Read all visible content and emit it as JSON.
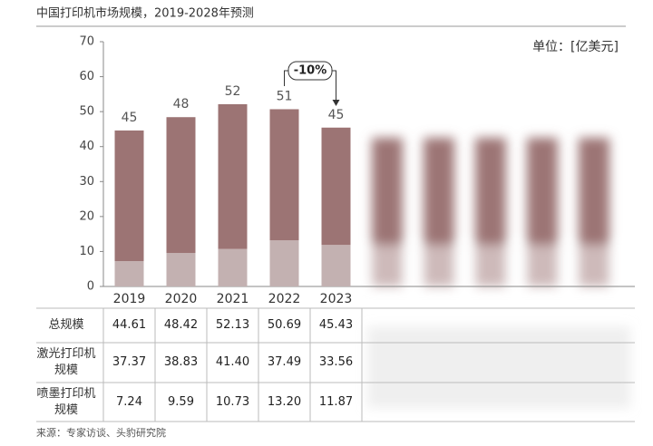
{
  "chart_data": {
    "type": "bar",
    "stacked": true,
    "title": "中国打印机市场规模，2019-2028年预测",
    "unit": "单位：[亿美元]",
    "source": "来源：专家访谈、头豹研究院",
    "annotation": "-10%",
    "categories": [
      "2019",
      "2020",
      "2021",
      "2022",
      "2023"
    ],
    "ylim": [
      0,
      70
    ],
    "yticks": [
      0,
      10,
      20,
      30,
      40,
      50,
      60,
      70
    ],
    "series": [
      {
        "name": "喷墨打印机规模",
        "color": "#c3b1b1",
        "values": [
          7.24,
          9.59,
          10.73,
          13.2,
          11.87
        ],
        "value_labels": [
          "7.24",
          "9.59",
          "10.73",
          "13.20",
          "11.87"
        ]
      },
      {
        "name": "激光打印机规模",
        "color": "#9c7474",
        "values": [
          37.37,
          38.83,
          41.4,
          37.49,
          33.56
        ],
        "value_labels": [
          "37.37",
          "38.83",
          "41.40",
          "37.49",
          "33.56"
        ]
      }
    ],
    "total": {
      "name": "总规模",
      "values": [
        44.61,
        48.42,
        52.13,
        50.69,
        45.43
      ],
      "value_labels": [
        "44.61",
        "48.42",
        "52.13",
        "50.69",
        "45.43"
      ],
      "bar_labels": [
        "45",
        "48",
        "52",
        "51",
        "45"
      ]
    }
  }
}
